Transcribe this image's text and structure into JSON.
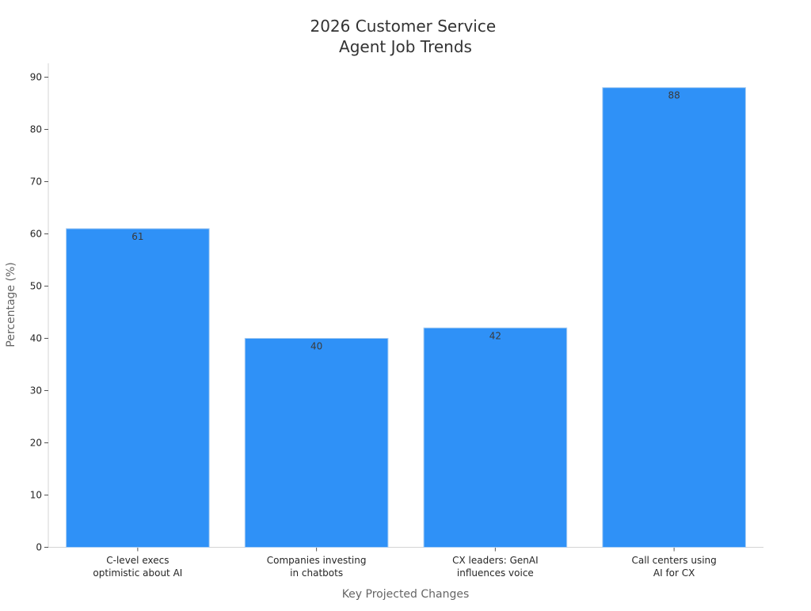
{
  "chart_data": {
    "type": "bar",
    "title": [
      "2026 Customer Service",
      "Agent Job Trends"
    ],
    "xlabel": "Key Projected Changes",
    "ylabel": "Percentage (%)",
    "categories": [
      [
        "C-level execs",
        "optimistic about AI"
      ],
      [
        "Companies investing",
        "in chatbots"
      ],
      [
        "CX leaders: GenAI",
        "influences voice"
      ],
      [
        "Call centers using",
        "AI for CX"
      ]
    ],
    "values": [
      61,
      40,
      42,
      88
    ],
    "data_labels": [
      "61",
      "40",
      "42",
      "88"
    ],
    "ylim": [
      0,
      90
    ],
    "yticks": [
      0,
      10,
      20,
      30,
      40,
      50,
      60,
      70,
      80,
      90
    ],
    "grid": false,
    "legend": "none",
    "colors": {
      "bar": "#2f91f7",
      "bar_edge": "#a9cdf2",
      "axis": "#d4d4d4"
    }
  }
}
